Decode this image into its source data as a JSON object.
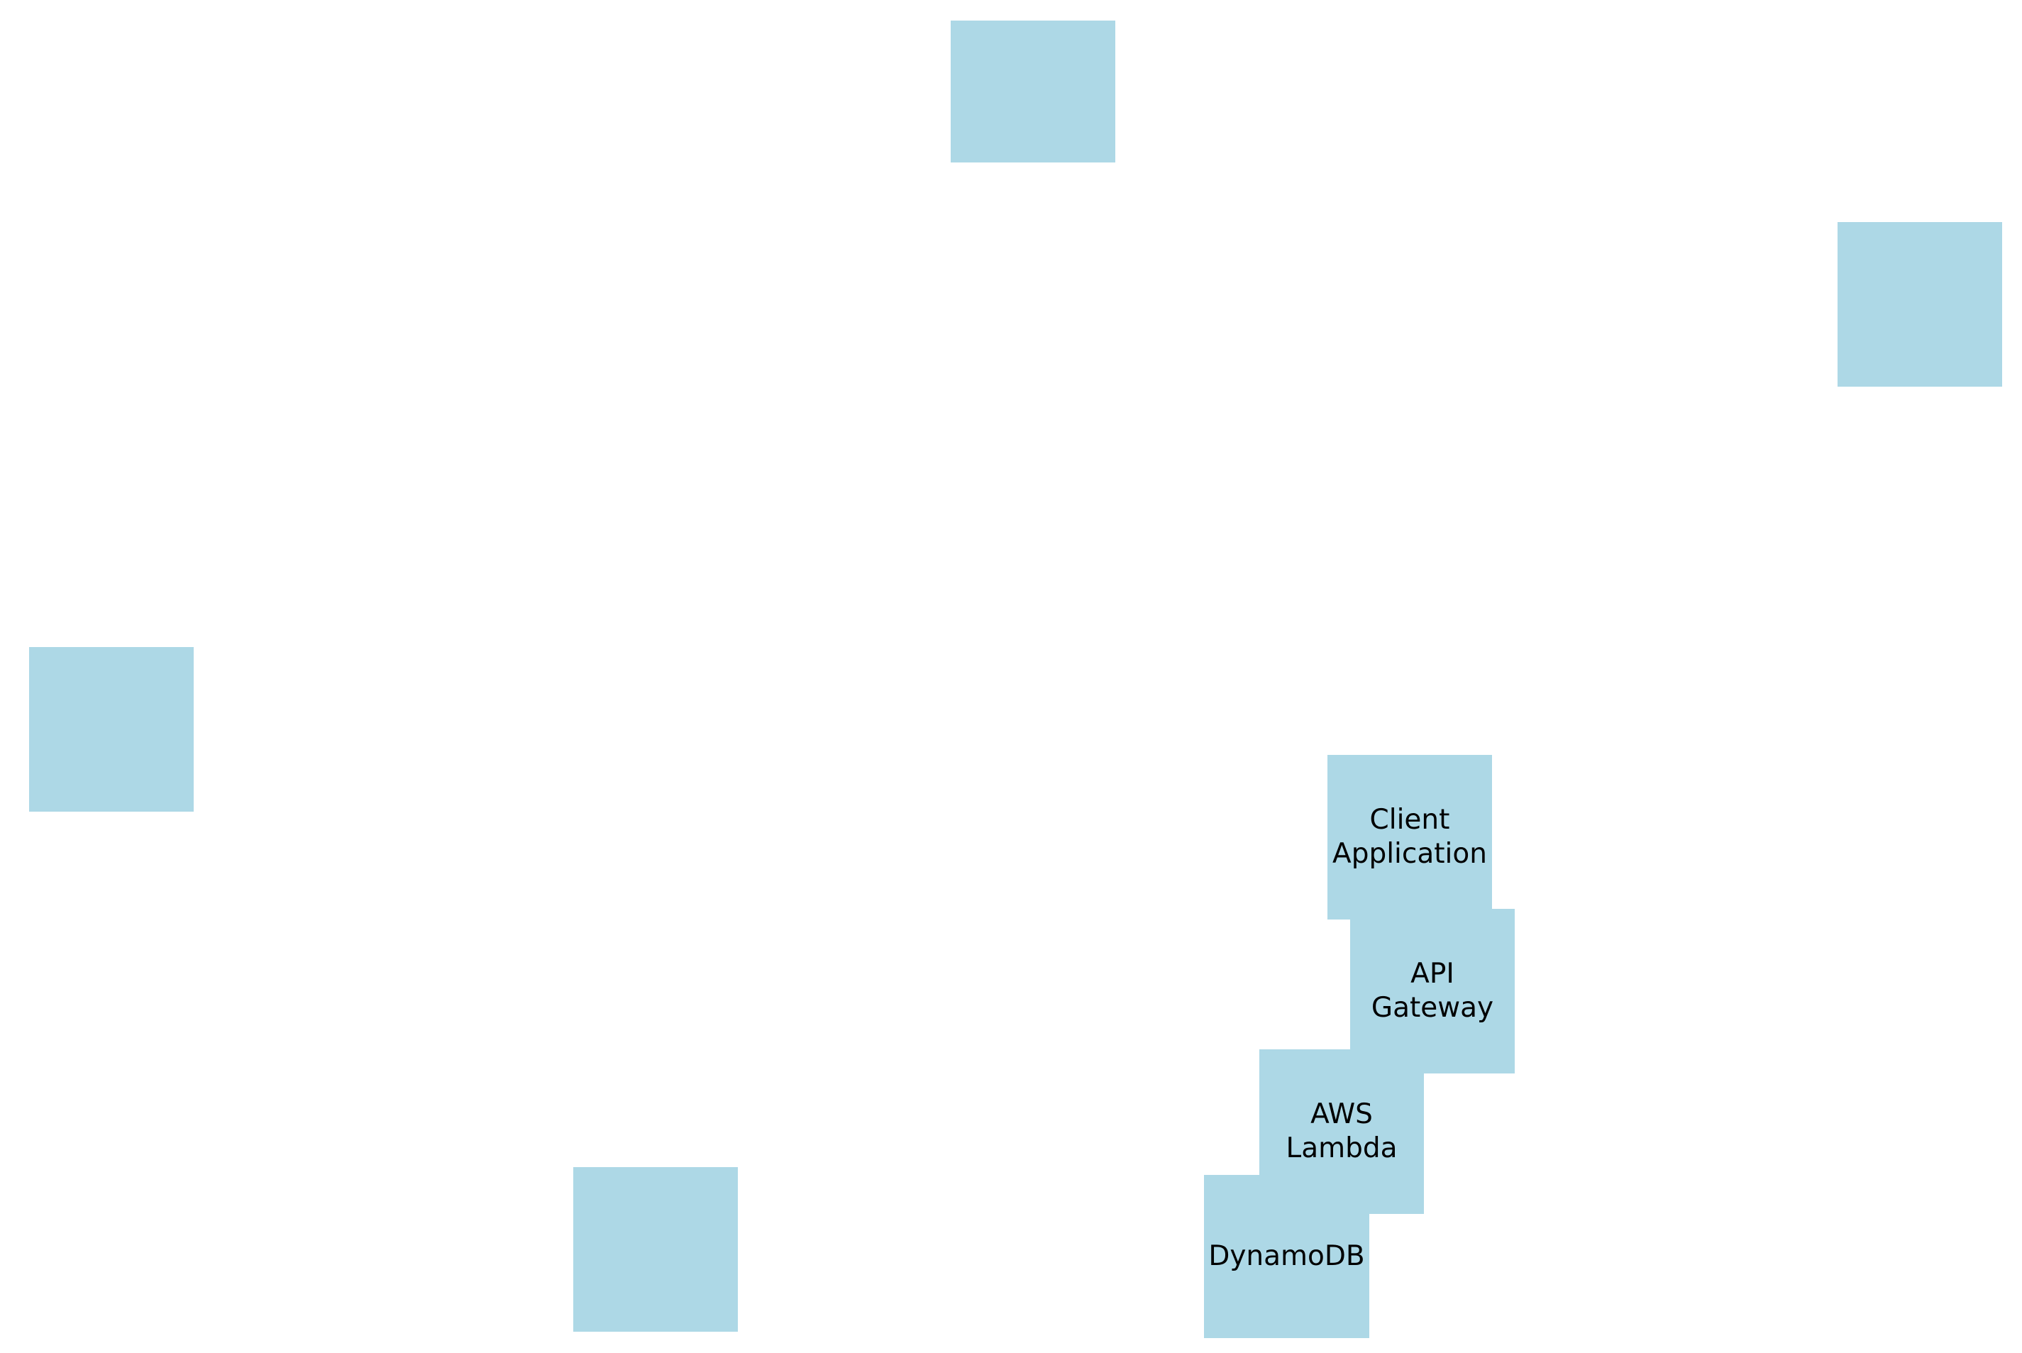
{
  "colors": {
    "node_fill": "#add8e6",
    "label_text": "#000000",
    "background": "#ffffff"
  },
  "nodes": {
    "unlabeled_top": {
      "label": ""
    },
    "unlabeled_right": {
      "label": ""
    },
    "unlabeled_left": {
      "label": ""
    },
    "unlabeled_bottom": {
      "label": ""
    },
    "client_application": {
      "label": "Client\nApplication"
    },
    "api_gateway": {
      "label": "API\nGateway"
    },
    "aws_lambda": {
      "label": "AWS\nLambda"
    },
    "dynamodb": {
      "label": "DynamoDB"
    }
  }
}
